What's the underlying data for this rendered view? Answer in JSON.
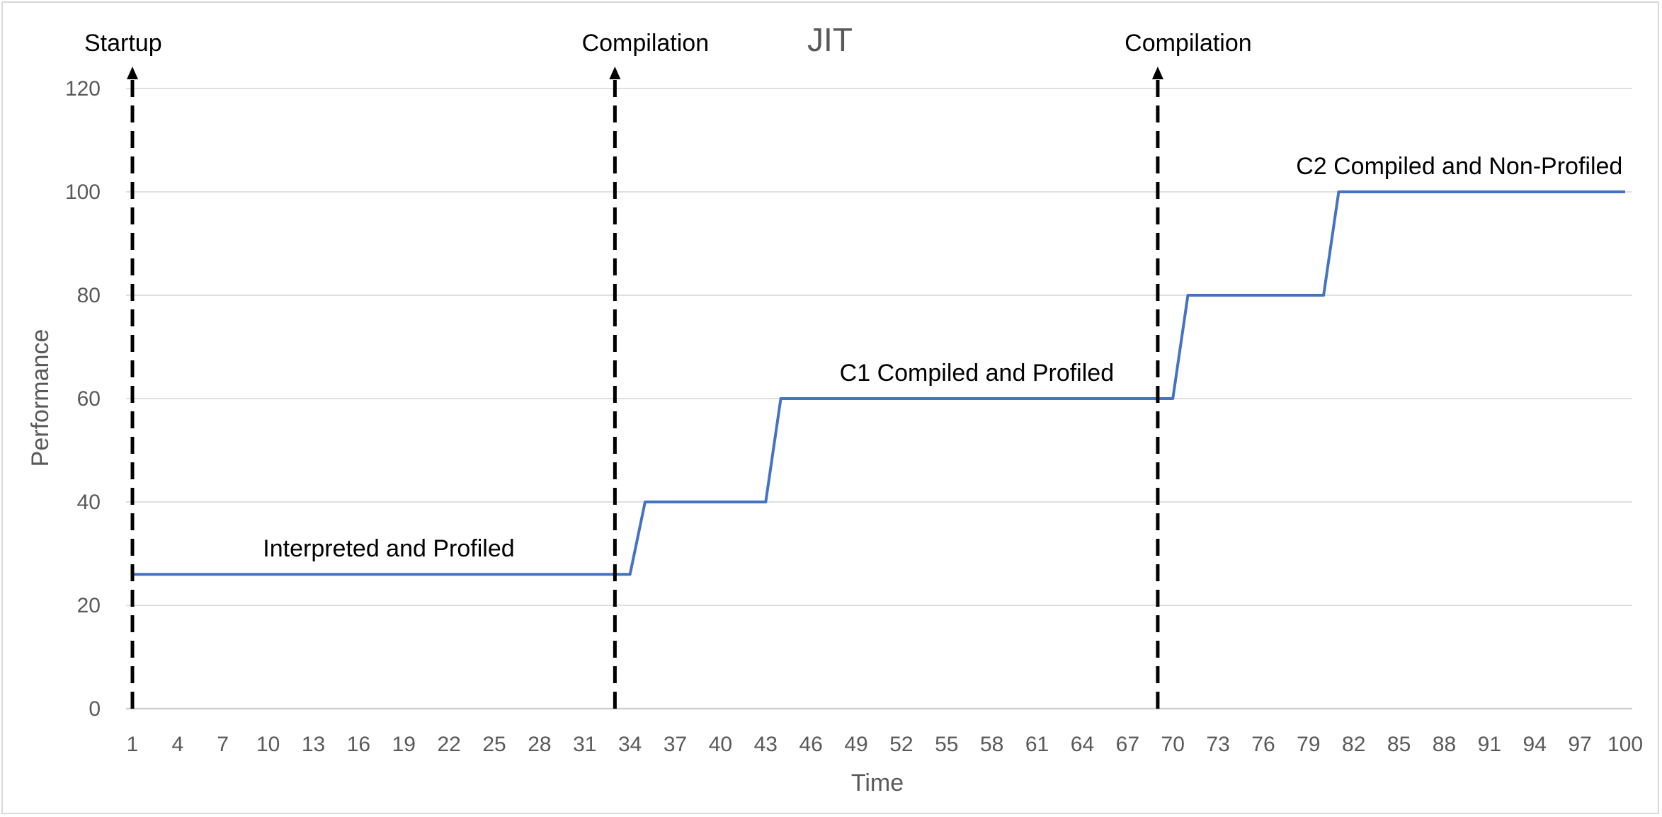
{
  "chart_data": {
    "type": "line",
    "title": "JIT",
    "xlabel": "Time",
    "ylabel": "Performance",
    "ylim": [
      0,
      120
    ],
    "yticks": [
      0,
      20,
      40,
      60,
      80,
      100,
      120
    ],
    "xlim": [
      1,
      100
    ],
    "xticks": [
      1,
      4,
      7,
      10,
      13,
      16,
      19,
      22,
      25,
      28,
      31,
      34,
      37,
      40,
      43,
      46,
      49,
      52,
      55,
      58,
      61,
      64,
      67,
      70,
      73,
      76,
      79,
      82,
      85,
      88,
      91,
      94,
      97,
      100
    ],
    "grid": true,
    "series": [
      {
        "color": "#4472c4",
        "points": [
          [
            1,
            26
          ],
          [
            34,
            26
          ],
          [
            35,
            40
          ],
          [
            43,
            40
          ],
          [
            44,
            60
          ],
          [
            70,
            60
          ],
          [
            71,
            80
          ],
          [
            80,
            80
          ],
          [
            81,
            100
          ],
          [
            100,
            100
          ]
        ]
      }
    ],
    "markers": [
      {
        "x": 1,
        "label": "Startup"
      },
      {
        "x": 33,
        "label": "Compilation"
      },
      {
        "x": 69,
        "label": "Compilation"
      }
    ],
    "annotations": [
      {
        "text": "Interpreted and Profiled",
        "x": 18,
        "y": 26
      },
      {
        "text": "C1 Compiled and Profiled",
        "x": 57,
        "y": 60
      },
      {
        "text": "C2 Compiled and Non-Profiled",
        "x": 89,
        "y": 100
      }
    ]
  }
}
